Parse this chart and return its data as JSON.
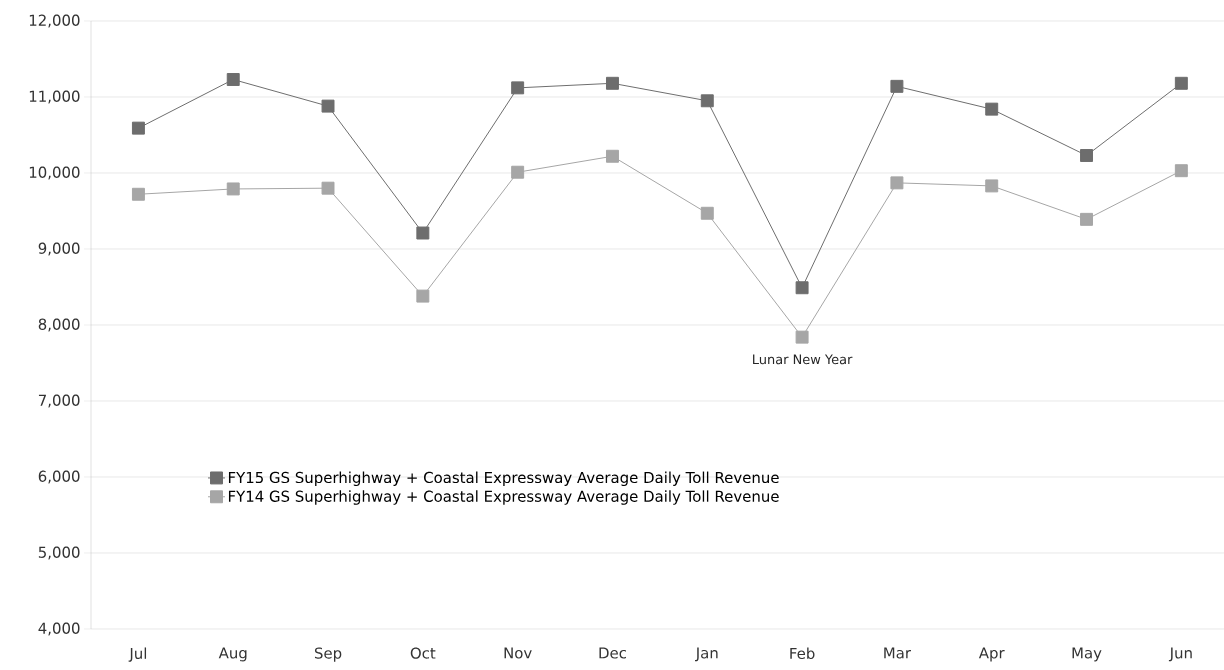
{
  "chart_data": {
    "type": "line",
    "categories": [
      "Jul",
      "Aug",
      "Sep",
      "Oct",
      "Nov",
      "Dec",
      "Jan",
      "Feb",
      "Mar",
      "Apr",
      "May",
      "Jun"
    ],
    "series": [
      {
        "name": "FY15 GS Superhighway + Coastal Expressway Average Daily Toll Revenue",
        "color": "#6d6d6d",
        "values": [
          10590,
          11230,
          10880,
          9210,
          11120,
          11180,
          10950,
          8490,
          11140,
          10840,
          10230,
          11180
        ]
      },
      {
        "name": "FY14 GS Superhighway + Coastal Expressway Average Daily Toll Revenue",
        "color": "#a6a6a6",
        "values": [
          9720,
          9790,
          9800,
          8380,
          10010,
          10220,
          9470,
          7840,
          9870,
          9830,
          9390,
          10030
        ]
      }
    ],
    "ylim": [
      4000,
      12000
    ],
    "yticks": [
      {
        "value": 4000,
        "label": "4,000"
      },
      {
        "value": 5000,
        "label": "5,000"
      },
      {
        "value": 6000,
        "label": "6,000"
      },
      {
        "value": 7000,
        "label": "7,000"
      },
      {
        "value": 8000,
        "label": "8,000"
      },
      {
        "value": 9000,
        "label": "9,000"
      },
      {
        "value": 10000,
        "label": "10,000"
      },
      {
        "value": 11000,
        "label": "11,000"
      },
      {
        "value": 12000,
        "label": "12,000"
      }
    ],
    "annotations": [
      {
        "text": "Lunar New Year",
        "x": "Feb",
        "y": 7840
      }
    ],
    "grid": "y",
    "legend": "bottom left",
    "marker": "square",
    "line_style": "solid"
  }
}
